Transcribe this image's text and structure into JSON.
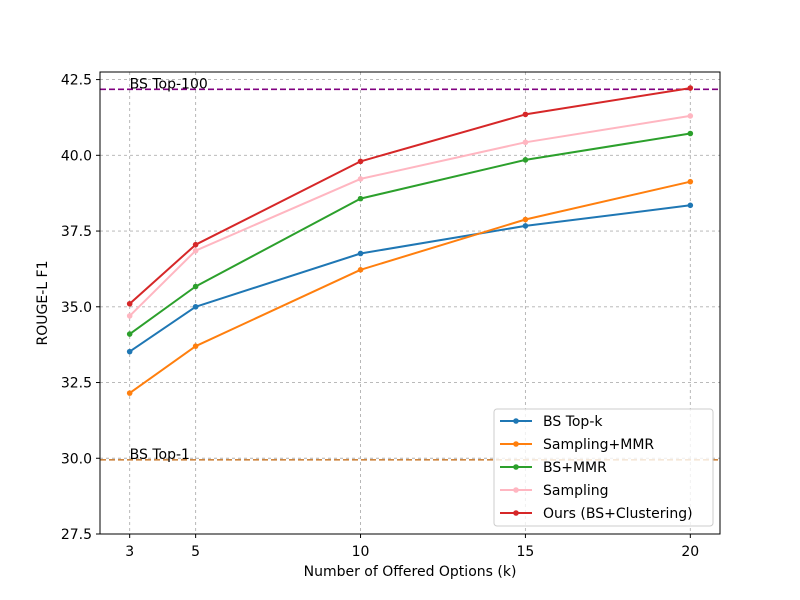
{
  "chart_data": {
    "type": "line",
    "title": "",
    "xlabel": "Number of Offered Options (k)",
    "ylabel": "ROUGE-L F1",
    "x": [
      3,
      5,
      10,
      15,
      20
    ],
    "x_ticks": [
      "3",
      "5",
      "10",
      "15",
      "20"
    ],
    "xlim": [
      2.1,
      20.9
    ],
    "ylim": [
      27.5,
      42.75
    ],
    "y_ticks": [
      "27.5",
      "30.0",
      "32.5",
      "35.0",
      "37.5",
      "40.0",
      "42.5"
    ],
    "grid": true,
    "legend_position": "lower-right",
    "series": [
      {
        "name": "BS Top-k",
        "color": "#1f77b4",
        "values": [
          33.52,
          35.0,
          36.76,
          37.67,
          38.35
        ]
      },
      {
        "name": "Sampling+MMR",
        "color": "#ff7f0e",
        "values": [
          32.15,
          33.7,
          36.22,
          37.88,
          39.13
        ]
      },
      {
        "name": "BS+MMR",
        "color": "#2ca02c",
        "values": [
          34.1,
          35.67,
          38.57,
          39.85,
          40.72
        ]
      },
      {
        "name": "Sampling",
        "color": "#ffb6c1",
        "values": [
          34.7,
          36.85,
          39.22,
          40.43,
          41.3
        ]
      },
      {
        "name": "Ours (BS+Clustering)",
        "color": "#d62728",
        "values": [
          35.1,
          37.05,
          39.8,
          41.35,
          42.22
        ]
      }
    ],
    "reference_lines": [
      {
        "label": "BS Top-100",
        "value": 42.18,
        "color": "#800080"
      },
      {
        "label": "BS Top-1",
        "value": 29.95,
        "color": "#cd853f"
      }
    ]
  }
}
